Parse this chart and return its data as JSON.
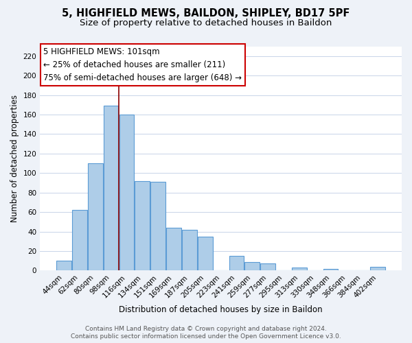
{
  "title": "5, HIGHFIELD MEWS, BAILDON, SHIPLEY, BD17 5PF",
  "subtitle": "Size of property relative to detached houses in Baildon",
  "xlabel": "Distribution of detached houses by size in Baildon",
  "ylabel": "Number of detached properties",
  "categories": [
    "44sqm",
    "62sqm",
    "80sqm",
    "98sqm",
    "116sqm",
    "134sqm",
    "151sqm",
    "169sqm",
    "187sqm",
    "205sqm",
    "223sqm",
    "241sqm",
    "259sqm",
    "277sqm",
    "295sqm",
    "313sqm",
    "330sqm",
    "348sqm",
    "366sqm",
    "384sqm",
    "402sqm"
  ],
  "values": [
    10,
    62,
    110,
    169,
    160,
    92,
    91,
    44,
    42,
    35,
    0,
    15,
    9,
    7,
    0,
    3,
    0,
    2,
    0,
    0,
    4
  ],
  "bar_color": "#aecde8",
  "bar_edge_color": "#5b9bd5",
  "vline_color": "#8b0000",
  "ylim": [
    0,
    230
  ],
  "yticks": [
    0,
    20,
    40,
    60,
    80,
    100,
    120,
    140,
    160,
    180,
    200,
    220
  ],
  "annotation_title": "5 HIGHFIELD MEWS: 101sqm",
  "annotation_line1": "← 25% of detached houses are smaller (211)",
  "annotation_line2": "75% of semi-detached houses are larger (648) →",
  "footer1": "Contains HM Land Registry data © Crown copyright and database right 2024.",
  "footer2": "Contains public sector information licensed under the Open Government Licence v3.0.",
  "background_color": "#eef2f8",
  "plot_background": "#ffffff",
  "grid_color": "#c8d4e8",
  "title_fontsize": 10.5,
  "subtitle_fontsize": 9.5,
  "axis_label_fontsize": 8.5,
  "tick_fontsize": 7.5,
  "footer_fontsize": 6.5,
  "annotation_fontsize": 8.5
}
